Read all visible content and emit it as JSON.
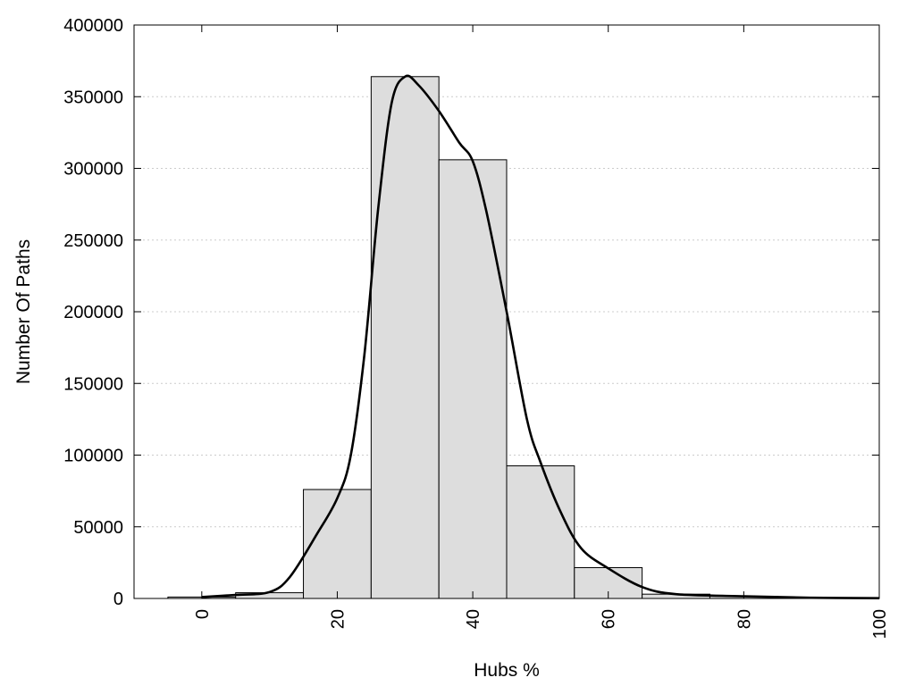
{
  "chart_data": {
    "type": "bar",
    "xlabel": "Hubs %",
    "ylabel": "Number Of Paths",
    "xlim": [
      -10,
      100
    ],
    "ylim": [
      0,
      400000
    ],
    "x_ticks": [
      "0",
      "20",
      "40",
      "60",
      "80",
      "100"
    ],
    "y_ticks": [
      "0",
      "50000",
      "100000",
      "150000",
      "200000",
      "250000",
      "300000",
      "350000",
      "400000"
    ],
    "grid": "horizontal dotted",
    "bar_width": 10,
    "bins": [
      {
        "x": 0,
        "value": 1000
      },
      {
        "x": 10,
        "value": 4000
      },
      {
        "x": 20,
        "value": 76000
      },
      {
        "x": 30,
        "value": 364000
      },
      {
        "x": 40,
        "value": 306000
      },
      {
        "x": 50,
        "value": 92500
      },
      {
        "x": 60,
        "value": 21500
      },
      {
        "x": 70,
        "value": 3000
      },
      {
        "x": 80,
        "value": 1500
      },
      {
        "x": 90,
        "value": 500
      },
      {
        "x": 100,
        "value": 300
      }
    ],
    "density_curve": [
      {
        "x": 0,
        "y": 1000
      },
      {
        "x": 5,
        "y": 2500
      },
      {
        "x": 10,
        "y": 4500
      },
      {
        "x": 13,
        "y": 15000
      },
      {
        "x": 17,
        "y": 45000
      },
      {
        "x": 20,
        "y": 70000
      },
      {
        "x": 22,
        "y": 100000
      },
      {
        "x": 24,
        "y": 170000
      },
      {
        "x": 26,
        "y": 270000
      },
      {
        "x": 28,
        "y": 345000
      },
      {
        "x": 30,
        "y": 364000
      },
      {
        "x": 32,
        "y": 358000
      },
      {
        "x": 35,
        "y": 340000
      },
      {
        "x": 38,
        "y": 318000
      },
      {
        "x": 40,
        "y": 305000
      },
      {
        "x": 42,
        "y": 270000
      },
      {
        "x": 45,
        "y": 200000
      },
      {
        "x": 48,
        "y": 125000
      },
      {
        "x": 50,
        "y": 95000
      },
      {
        "x": 53,
        "y": 60000
      },
      {
        "x": 56,
        "y": 35000
      },
      {
        "x": 60,
        "y": 21000
      },
      {
        "x": 65,
        "y": 8000
      },
      {
        "x": 70,
        "y": 3000
      },
      {
        "x": 80,
        "y": 1500
      },
      {
        "x": 90,
        "y": 500
      },
      {
        "x": 100,
        "y": 200
      }
    ],
    "bar_fill": "#dddddd",
    "bar_stroke": "#000000",
    "curve_color": "#000000",
    "grid_color": "#cccccc"
  }
}
